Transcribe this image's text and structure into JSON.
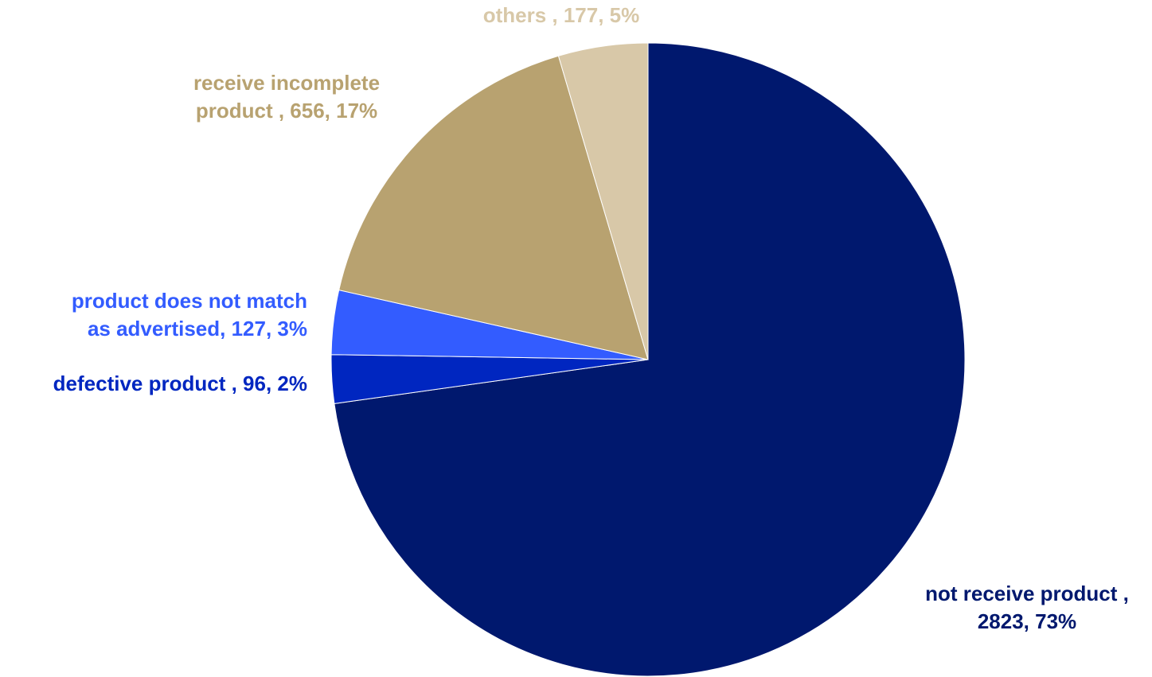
{
  "chart_data": {
    "type": "pie",
    "title": "",
    "start_angle_deg": 0,
    "direction": "clockwise",
    "slices": [
      {
        "name": "not receive product",
        "value": 2823,
        "percent": "73%",
        "label_lines": [
          "not receive product ,",
          "2823, 73%"
        ],
        "color": "#00186E"
      },
      {
        "name": "defective product",
        "value": 96,
        "percent": "2%",
        "label_lines": [
          "defective product , 96, 2%"
        ],
        "color": "#0026C0"
      },
      {
        "name": "product does not match as advertised",
        "value": 127,
        "percent": "3%",
        "label_lines": [
          "product does not match",
          "as advertised, 127, 3%"
        ],
        "color": "#335CFF"
      },
      {
        "name": "receive incomplete product",
        "value": 656,
        "percent": "17%",
        "label_lines": [
          "receive incomplete",
          "product , 656, 17%"
        ],
        "color": "#B8A270"
      },
      {
        "name": "others",
        "value": 177,
        "percent": "5%",
        "label_lines": [
          "others , 177, 5%"
        ],
        "color": "#D8C8A8"
      }
    ]
  }
}
